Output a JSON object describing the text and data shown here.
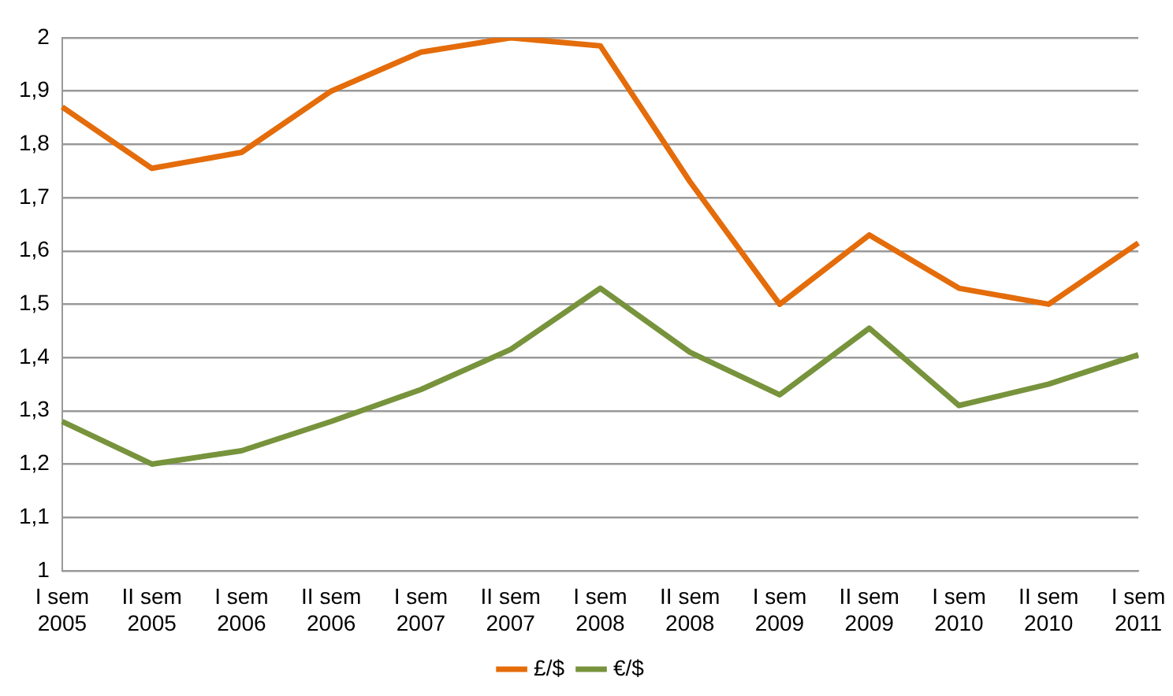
{
  "chart_data": {
    "type": "line",
    "categories": [
      "I sem 2005",
      "II sem 2005",
      "I sem 2006",
      "II sem 2006",
      "I sem 2007",
      "II sem 2007",
      "I sem 2008",
      "II sem 2008",
      "I sem 2009",
      "II sem 2009",
      "I sem 2010",
      "II sem 2010",
      "I sem 2011"
    ],
    "series": [
      {
        "name": "£/$",
        "color": "#e46c0a",
        "values": [
          1.87,
          1.755,
          1.785,
          1.9,
          1.973,
          2.0,
          1.985,
          1.73,
          1.5,
          1.63,
          1.53,
          1.5,
          1.615
        ]
      },
      {
        "name": "€/$",
        "color": "#77933c",
        "values": [
          1.28,
          1.2,
          1.225,
          1.28,
          1.34,
          1.415,
          1.53,
          1.41,
          1.33,
          1.455,
          1.31,
          1.35,
          1.405
        ]
      }
    ],
    "ylim": [
      1,
      2
    ],
    "yticks": [
      {
        "value": 1,
        "label": "1"
      },
      {
        "value": 1.1,
        "label": "1,1"
      },
      {
        "value": 1.2,
        "label": "1,2"
      },
      {
        "value": 1.3,
        "label": "1,3"
      },
      {
        "value": 1.4,
        "label": "1,4"
      },
      {
        "value": 1.5,
        "label": "1,5"
      },
      {
        "value": 1.6,
        "label": "1,6"
      },
      {
        "value": 1.7,
        "label": "1,7"
      },
      {
        "value": 1.8,
        "label": "1,8"
      },
      {
        "value": 1.9,
        "label": "1,9"
      },
      {
        "value": 2,
        "label": "2"
      }
    ],
    "grid": "y",
    "legend": "bottom",
    "marker": "none",
    "line_style": "solid"
  }
}
